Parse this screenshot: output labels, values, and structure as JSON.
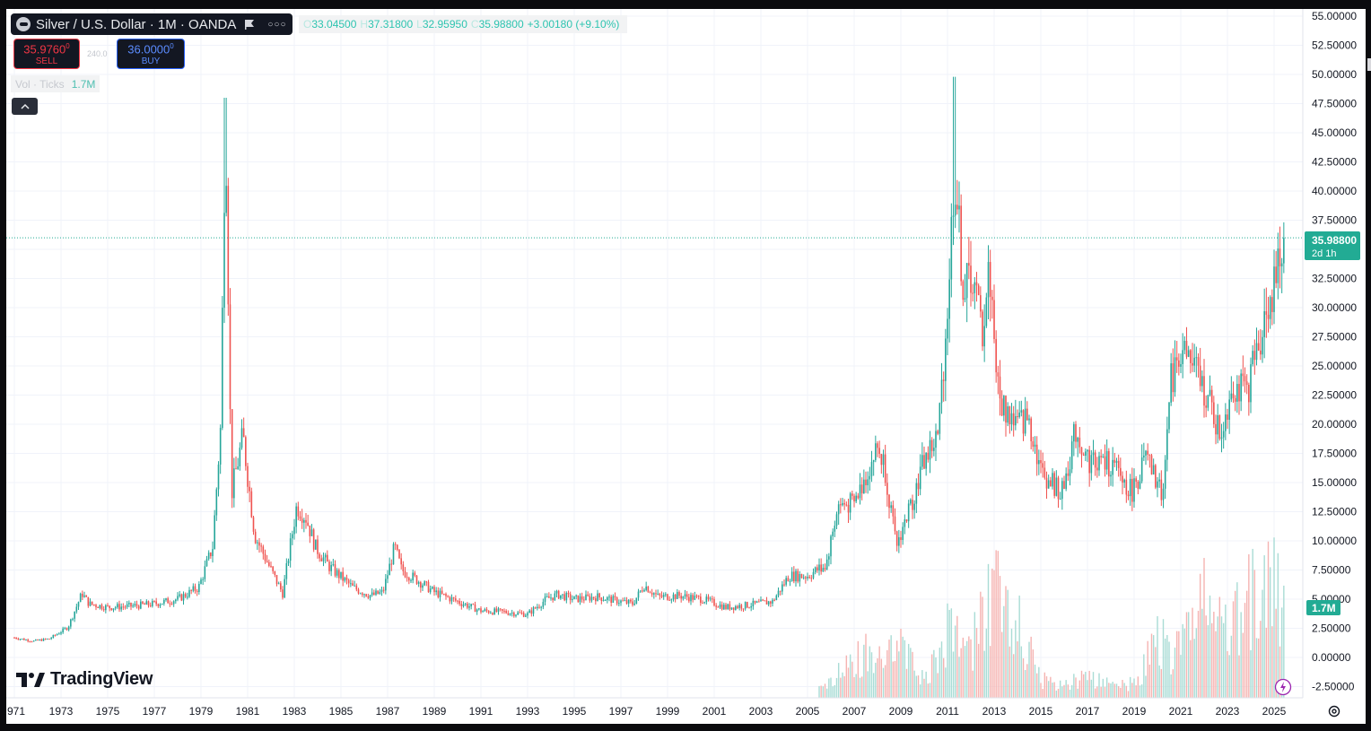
{
  "header": {
    "symbol_title": "Silver / U.S. Dollar · 1M · OANDA",
    "more_icon": "more-dots-icon",
    "flag_icon": "flag-icon"
  },
  "ohlc": {
    "open_key": "O",
    "open": "33.04500",
    "high_key": "H",
    "high": "37.31800",
    "low_key": "L",
    "low": "32.95950",
    "close_key": "C",
    "close": "35.98800",
    "change": "+3.00180 (+9.10%)"
  },
  "trade": {
    "sell_price": "35.9760",
    "sell_price_small": "0",
    "sell_label": "SELL",
    "spread": "240.0",
    "buy_price": "36.0000",
    "buy_price_small": "0",
    "buy_label": "BUY"
  },
  "volume": {
    "name": "Vol · Ticks",
    "value": "1.7M"
  },
  "branding": {
    "logo_text": "TradingView"
  },
  "price_axis": {
    "ticks": [
      "55.00000",
      "52.50000",
      "50.00000",
      "47.50000",
      "45.00000",
      "42.50000",
      "40.00000",
      "37.50000",
      "35.00000",
      "32.50000",
      "30.00000",
      "27.50000",
      "25.00000",
      "22.50000",
      "20.00000",
      "17.50000",
      "15.00000",
      "12.50000",
      "10.00000",
      "7.50000",
      "5.00000",
      "2.50000",
      "0.00000",
      "-2.50000"
    ],
    "last_price": "35.98800",
    "countdown": "2d 1h",
    "volume_badge": "1.7M"
  },
  "time_axis": {
    "labels": [
      "971",
      "1973",
      "1975",
      "1977",
      "1979",
      "1981",
      "1983",
      "1985",
      "1987",
      "1989",
      "1991",
      "1993",
      "1995",
      "1997",
      "1999",
      "2001",
      "2003",
      "2005",
      "2007",
      "2009",
      "2011",
      "2013",
      "2015",
      "2017",
      "2019",
      "2021",
      "2023",
      "2025"
    ]
  },
  "colors": {
    "up": "#26a69a",
    "down": "#ef5350",
    "price_line": "#22ab94",
    "sell": "#f23645",
    "buy": "#2962ff",
    "grid": "#f0f3fa"
  },
  "chart_data": {
    "type": "candlestick",
    "title": "Silver / U.S. Dollar · 1M · OANDA",
    "ylim": [
      -3.5,
      55.8
    ],
    "anchors": [
      [
        1971.0,
        1.7
      ],
      [
        1971.8,
        1.4
      ],
      [
        1972.5,
        1.6
      ],
      [
        1973.3,
        2.6
      ],
      [
        1973.9,
        5.5
      ],
      [
        1974.2,
        4.6
      ],
      [
        1975.0,
        4.3
      ],
      [
        1976.0,
        4.4
      ],
      [
        1977.0,
        4.6
      ],
      [
        1978.0,
        5.0
      ],
      [
        1978.9,
        6.0
      ],
      [
        1979.5,
        9.5
      ],
      [
        1979.85,
        20.0
      ],
      [
        1980.05,
        48.0
      ],
      [
        1980.3,
        14.0
      ],
      [
        1980.8,
        19.0
      ],
      [
        1981.3,
        10.5
      ],
      [
        1982.0,
        7.5
      ],
      [
        1982.5,
        5.5
      ],
      [
        1983.1,
        13.0
      ],
      [
        1983.5,
        12.0
      ],
      [
        1983.9,
        9.5
      ],
      [
        1984.5,
        7.8
      ],
      [
        1985.5,
        6.0
      ],
      [
        1986.3,
        5.3
      ],
      [
        1986.8,
        5.6
      ],
      [
        1987.3,
        9.5
      ],
      [
        1987.6,
        7.5
      ],
      [
        1988.3,
        6.6
      ],
      [
        1989.0,
        5.6
      ],
      [
        1990.0,
        4.8
      ],
      [
        1991.0,
        4.0
      ],
      [
        1992.0,
        3.9
      ],
      [
        1993.0,
        3.7
      ],
      [
        1993.8,
        5.0
      ],
      [
        1994.3,
        5.4
      ],
      [
        1995.0,
        5.0
      ],
      [
        1996.0,
        5.2
      ],
      [
        1996.5,
        5.0
      ],
      [
        1997.5,
        4.6
      ],
      [
        1998.0,
        6.2
      ],
      [
        1998.6,
        5.2
      ],
      [
        1999.5,
        5.3
      ],
      [
        2000.5,
        5.0
      ],
      [
        2001.5,
        4.3
      ],
      [
        2002.5,
        4.5
      ],
      [
        2003.5,
        4.8
      ],
      [
        2004.2,
        7.0
      ],
      [
        2005.0,
        7.0
      ],
      [
        2005.8,
        8.0
      ],
      [
        2006.3,
        13.0
      ],
      [
        2007.0,
        13.2
      ],
      [
        2008.0,
        18.0
      ],
      [
        2008.3,
        16.5
      ],
      [
        2008.8,
        9.5
      ],
      [
        2009.5,
        13.5
      ],
      [
        2010.0,
        17.0
      ],
      [
        2010.6,
        19.0
      ],
      [
        2011.0,
        30.0
      ],
      [
        2011.3,
        42.0
      ],
      [
        2011.7,
        31.0
      ],
      [
        2012.0,
        33.0
      ],
      [
        2012.5,
        28.0
      ],
      [
        2012.8,
        33.5
      ],
      [
        2013.2,
        22.0
      ],
      [
        2014.0,
        20.0
      ],
      [
        2014.5,
        20.5
      ],
      [
        2015.0,
        16.0
      ],
      [
        2015.9,
        14.0
      ],
      [
        2016.5,
        19.5
      ],
      [
        2017.0,
        17.0
      ],
      [
        2018.0,
        16.5
      ],
      [
        2018.9,
        14.2
      ],
      [
        2019.5,
        17.0
      ],
      [
        2020.2,
        14.0
      ],
      [
        2020.6,
        24.0
      ],
      [
        2021.0,
        26.5
      ],
      [
        2021.5,
        25.0
      ],
      [
        2022.0,
        23.0
      ],
      [
        2022.7,
        19.0
      ],
      [
        2023.2,
        23.5
      ],
      [
        2023.8,
        22.5
      ],
      [
        2024.3,
        26.5
      ],
      [
        2024.8,
        31.0
      ],
      [
        2025.0,
        31.5
      ],
      [
        2025.45,
        36.0
      ]
    ],
    "volume_anchors": [
      [
        2005.8,
        0.3
      ],
      [
        2007.0,
        0.8
      ],
      [
        2008.5,
        1.3
      ],
      [
        2009.2,
        1.0
      ],
      [
        2010.0,
        0.4
      ],
      [
        2011.0,
        1.4
      ],
      [
        2012.0,
        1.0
      ],
      [
        2013.0,
        2.4
      ],
      [
        2014.0,
        1.6
      ],
      [
        2015.0,
        0.4
      ],
      [
        2016.0,
        0.3
      ],
      [
        2017.0,
        0.5
      ],
      [
        2018.0,
        0.3
      ],
      [
        2019.0,
        0.3
      ],
      [
        2020.0,
        1.2
      ],
      [
        2021.0,
        1.0
      ],
      [
        2022.0,
        2.0
      ],
      [
        2023.0,
        1.3
      ],
      [
        2024.0,
        2.2
      ],
      [
        2025.0,
        2.7
      ],
      [
        2025.45,
        1.7
      ]
    ],
    "last_close": 35.988
  }
}
